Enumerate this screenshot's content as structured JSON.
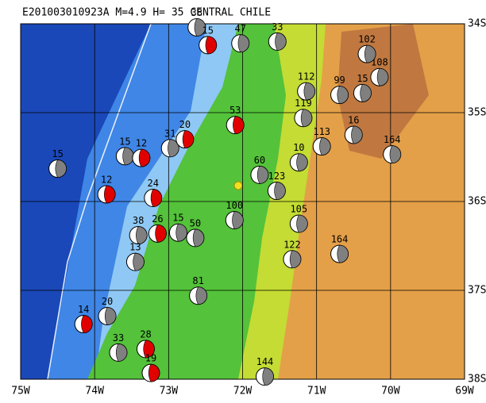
{
  "chart_data": {
    "type": "map",
    "title": "E201003010923A M=4.9 H= 35 CENTRAL CHILE",
    "xlim": [
      -75,
      -69
    ],
    "ylim": [
      -38,
      -34
    ],
    "xticks": [
      {
        "value": -75,
        "label": "75W"
      },
      {
        "value": -74,
        "label": "74W"
      },
      {
        "value": -73,
        "label": "73W"
      },
      {
        "value": -72,
        "label": "72W"
      },
      {
        "value": -71,
        "label": "71W"
      },
      {
        "value": -70,
        "label": "70W"
      },
      {
        "value": -69,
        "label": "69W"
      }
    ],
    "yticks": [
      {
        "value": -34,
        "label": "34S"
      },
      {
        "value": -35,
        "label": "35S"
      },
      {
        "value": -36,
        "label": "36S"
      },
      {
        "value": -37,
        "label": "37S"
      },
      {
        "value": -38,
        "label": "38S"
      }
    ],
    "events": [
      {
        "label": "15",
        "lon": -74.5,
        "lat": -35.63,
        "color": "#808080"
      },
      {
        "label": "12",
        "lon": -73.84,
        "lat": -35.92,
        "color": "#e00000"
      },
      {
        "label": "24",
        "lon": -73.21,
        "lat": -35.96,
        "color": "#e00000"
      },
      {
        "label": "15",
        "lon": -73.59,
        "lat": -35.49,
        "color": "#808080"
      },
      {
        "label": "12",
        "lon": -73.37,
        "lat": -35.51,
        "color": "#e00000"
      },
      {
        "label": "31",
        "lon": -72.98,
        "lat": -35.4,
        "color": "#808080"
      },
      {
        "label": "20",
        "lon": -72.78,
        "lat": -35.3,
        "color": "#e00000"
      },
      {
        "label": "53",
        "lon": -72.1,
        "lat": -35.14,
        "color": "#e00000"
      },
      {
        "label": "60",
        "lon": -71.77,
        "lat": -35.7,
        "color": "#808080"
      },
      {
        "label": "100",
        "lon": -72.11,
        "lat": -36.21,
        "color": "#808080"
      },
      {
        "label": "50",
        "lon": -72.64,
        "lat": -36.41,
        "color": "#808080"
      },
      {
        "label": "15",
        "lon": -72.87,
        "lat": -36.35,
        "color": "#808080"
      },
      {
        "label": "26",
        "lon": -73.15,
        "lat": -36.36,
        "color": "#e00000"
      },
      {
        "label": "38",
        "lon": -73.41,
        "lat": -36.38,
        "color": "#808080"
      },
      {
        "label": "81",
        "lon": -72.6,
        "lat": -37.06,
        "color": "#808080"
      },
      {
        "label": "20",
        "lon": -73.83,
        "lat": -37.29,
        "color": "#808080"
      },
      {
        "label": "14",
        "lon": -74.15,
        "lat": -37.38,
        "color": "#e00000"
      },
      {
        "label": "28",
        "lon": -73.31,
        "lat": -37.66,
        "color": "#e00000"
      },
      {
        "label": "19",
        "lon": -73.24,
        "lat": -37.93,
        "color": "#e00000"
      },
      {
        "label": "33",
        "lon": -73.68,
        "lat": -37.7,
        "color": "#808080"
      },
      {
        "label": "144",
        "lon": -71.7,
        "lat": -37.97,
        "color": "#808080"
      },
      {
        "label": "122",
        "lon": -71.33,
        "lat": -36.65,
        "color": "#808080"
      },
      {
        "label": "164",
        "lon": -70.69,
        "lat": -36.59,
        "color": "#808080"
      },
      {
        "label": "105",
        "lon": -71.24,
        "lat": -36.25,
        "color": "#808080"
      },
      {
        "label": "113",
        "lon": -70.93,
        "lat": -35.38,
        "color": "#808080"
      },
      {
        "label": "16",
        "lon": -70.5,
        "lat": -35.25,
        "color": "#808080"
      },
      {
        "label": "164",
        "lon": -69.98,
        "lat": -35.47,
        "color": "#808080"
      },
      {
        "label": "112",
        "lon": -71.14,
        "lat": -34.76,
        "color": "#808080"
      },
      {
        "label": "119",
        "lon": -71.18,
        "lat": -35.06,
        "color": "#808080"
      },
      {
        "label": "99",
        "lon": -70.69,
        "lat": -34.8,
        "color": "#808080"
      },
      {
        "label": "15",
        "lon": -70.38,
        "lat": -34.78,
        "color": "#808080"
      },
      {
        "label": "108",
        "lon": -70.15,
        "lat": -34.6,
        "color": "#808080"
      },
      {
        "label": "102",
        "lon": -70.32,
        "lat": -34.34,
        "color": "#808080"
      },
      {
        "label": "33",
        "lon": -71.53,
        "lat": -34.2,
        "color": "#808080"
      },
      {
        "label": "47",
        "lon": -72.03,
        "lat": -34.22,
        "color": "#808080"
      },
      {
        "label": "10",
        "lon": -71.24,
        "lat": -35.56,
        "color": "#808080"
      },
      {
        "label": "123",
        "lon": -71.54,
        "lat": -35.88,
        "color": "#808080"
      },
      {
        "label": "13",
        "lon": -73.45,
        "lat": -36.68,
        "color": "#808080"
      },
      {
        "label": "38",
        "lon": -72.62,
        "lat": -34.04,
        "color": "#808080"
      },
      {
        "label": "15",
        "lon": -72.47,
        "lat": -34.24,
        "color": "#e00000"
      }
    ]
  }
}
